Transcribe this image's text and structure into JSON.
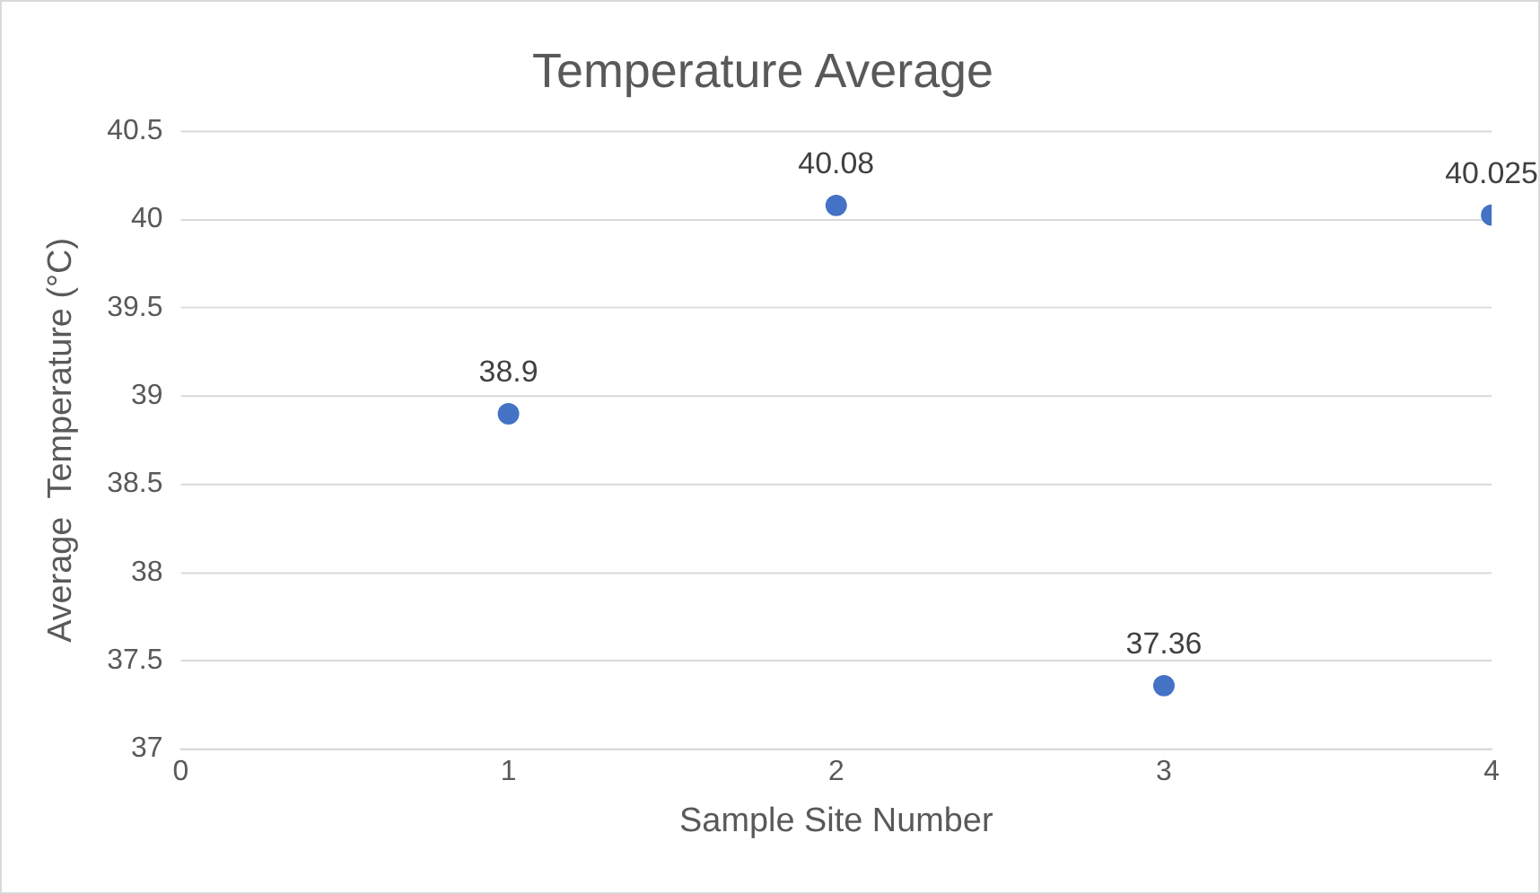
{
  "chart_data": {
    "type": "scatter",
    "title": "Temperature Average",
    "xlabel": "Sample Site Number",
    "ylabel": "Average  Temperature (°C)",
    "x": [
      1,
      2,
      3,
      4
    ],
    "series": [
      {
        "color": "#4472c4",
        "values": [
          38.9,
          40.08,
          37.36,
          40.025
        ]
      }
    ],
    "xlim": [
      0,
      4
    ],
    "xticks": [
      0,
      1,
      2,
      3,
      4
    ],
    "ylim": [
      37,
      40.5
    ],
    "yticks": [
      37,
      37.5,
      38,
      38.5,
      39,
      39.5,
      40,
      40.5
    ],
    "grid": "y",
    "marker": "circle",
    "data_labels": true,
    "legend": false
  }
}
